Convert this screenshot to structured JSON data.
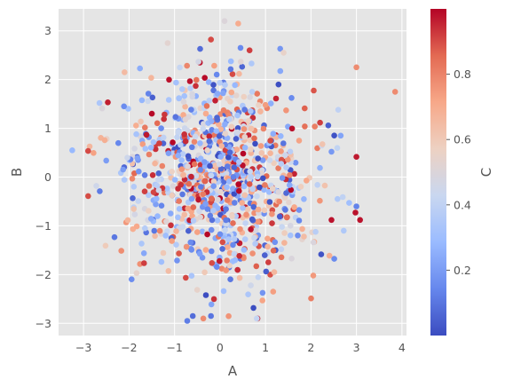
{
  "chart_data": {
    "type": "scatter",
    "title": "",
    "xlabel": "A",
    "ylabel": "B",
    "xlim": [
      -3.55,
      4.1
    ],
    "ylim": [
      -3.25,
      3.45
    ],
    "xticks": [
      -3,
      -2,
      -1,
      0,
      1,
      2,
      3,
      4
    ],
    "yticks": [
      -3,
      -2,
      -1,
      0,
      1,
      2,
      3
    ],
    "grid": true,
    "legend": "none",
    "background_color": "#e5e5e5",
    "grid_color": "#ffffff",
    "tick_label_color": "#555555",
    "colormap": "coolwarm",
    "colorbar": {
      "label": "C",
      "range": [
        0.0,
        1.0
      ],
      "ticks": [
        0.2,
        0.4,
        0.6,
        0.8
      ],
      "colors": [
        "#3b4cc0",
        "#6687ed",
        "#9abbff",
        "#c9d7f0",
        "#edd1c2",
        "#f7a889",
        "#e36a53",
        "#b40426"
      ]
    },
    "point_count": 1000,
    "random_seed": 20240521,
    "highlighted_points": [
      {
        "x": 3.85,
        "y": 1.75,
        "c": 0.78
      },
      {
        "x": -3.25,
        "y": 0.55,
        "c": 0.28
      },
      {
        "x": 3.08,
        "y": -0.88,
        "c": 0.98
      },
      {
        "x": 2.72,
        "y": -1.1,
        "c": 0.35
      },
      {
        "x": 0.1,
        "y": 3.2,
        "c": 0.5
      },
      {
        "x": 0.4,
        "y": 3.15,
        "c": 0.7
      },
      {
        "x": -0.2,
        "y": 2.82,
        "c": 0.9
      },
      {
        "x": 0.65,
        "y": 2.6,
        "c": 0.92
      },
      {
        "x": 0.45,
        "y": 2.65,
        "c": 0.15
      },
      {
        "x": -0.72,
        "y": -2.95,
        "c": 0.12
      },
      {
        "x": -0.6,
        "y": -2.85,
        "c": 0.08
      },
      {
        "x": -0.2,
        "y": -2.85,
        "c": 0.1
      },
      {
        "x": 1.4,
        "y": 2.55,
        "c": 0.55
      },
      {
        "x": -2.1,
        "y": 2.15,
        "c": 0.65
      },
      {
        "x": 2.45,
        "y": -0.88,
        "c": 0.98
      },
      {
        "x": 2.6,
        "y": 1.38,
        "c": 0.4
      },
      {
        "x": 2.05,
        "y": -2.02,
        "c": 0.75
      },
      {
        "x": -2.72,
        "y": -0.18,
        "c": 0.45
      }
    ]
  }
}
